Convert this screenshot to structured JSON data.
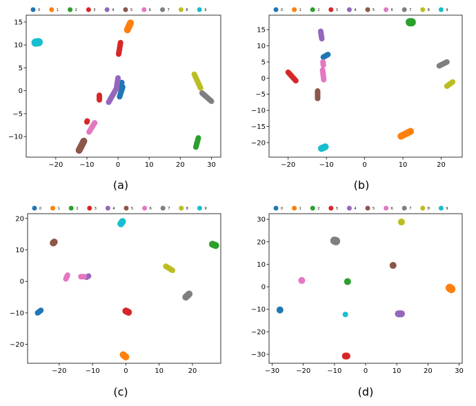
{
  "legend_labels": [
    "0",
    "1",
    "2",
    "3",
    "4",
    "5",
    "6",
    "7",
    "8",
    "9"
  ],
  "colors": [
    "#1f77b4",
    "#ff7f0e",
    "#2ca02c",
    "#d62728",
    "#9467bd",
    "#8c564b",
    "#e377c2",
    "#7f7f7f",
    "#bcbd22",
    "#17becf"
  ],
  "chart_data": [
    {
      "type": "scatter",
      "caption": "(a)",
      "xlim": [
        -29.5,
        33
      ],
      "ylim": [
        -14.5,
        16.5
      ],
      "xticks": [
        -20,
        -10,
        0,
        10,
        20,
        30
      ],
      "yticks": [
        -10,
        -5,
        0,
        5,
        10,
        15
      ],
      "grid": false,
      "legend": "top",
      "clusters": [
        {
          "label": "0",
          "segs": [
            [
              [
                0.5,
                -1.3
              ],
              [
                1.5,
                0.8
              ]
            ],
            [
              [
                0.8,
                0.4
              ],
              [
                1.2,
                1.8
              ]
            ]
          ],
          "r": 4
        },
        {
          "label": "1",
          "segs": [
            [
              [
                3,
                13.3
              ],
              [
                4,
                14.8
              ]
            ]
          ],
          "r": 5
        },
        {
          "label": "2",
          "segs": [
            [
              [
                25,
                -12.3
              ],
              [
                25.8,
                -10.3
              ]
            ]
          ],
          "r": 4
        },
        {
          "label": "3",
          "segs": [
            [
              [
                0.2,
                8
              ],
              [
                0.8,
                10.5
              ]
            ],
            [
              [
                -6,
                -2
              ],
              [
                -6,
                -1
              ]
            ],
            [
              [
                -10,
                -6.8
              ],
              [
                -9.9,
                -6.6
              ]
            ]
          ],
          "r": 4
        },
        {
          "label": "4",
          "segs": [
            [
              [
                -3,
                -2.5
              ],
              [
                -0.5,
                0.5
              ]
            ],
            [
              [
                -0.5,
                0.5
              ],
              [
                0,
                2.8
              ]
            ]
          ],
          "r": 4
        },
        {
          "label": "5",
          "segs": [
            [
              [
                -12.5,
                -13
              ],
              [
                -11,
                -11
              ]
            ]
          ],
          "r": 5
        },
        {
          "label": "6",
          "segs": [
            [
              [
                -9.3,
                -9
              ],
              [
                -7.5,
                -7
              ]
            ]
          ],
          "r": 4
        },
        {
          "label": "7",
          "segs": [
            [
              [
                27,
                -0.5
              ],
              [
                30,
                -2.3
              ]
            ]
          ],
          "r": 4
        },
        {
          "label": "8",
          "segs": [
            [
              [
                24.5,
                3.6
              ],
              [
                26.5,
                0.6
              ]
            ]
          ],
          "r": 4
        },
        {
          "label": "9",
          "segs": [
            [
              [
                -26.5,
                10.5
              ],
              [
                -25.5,
                10.6
              ]
            ]
          ],
          "r": 6
        }
      ]
    },
    {
      "type": "scatter",
      "caption": "(b)",
      "xlim": [
        -25,
        25.5
      ],
      "ylim": [
        -24.5,
        19.5
      ],
      "xticks": [
        -20,
        -10,
        0,
        10,
        20
      ],
      "yticks": [
        -20,
        -15,
        -10,
        -5,
        0,
        5,
        10,
        15
      ],
      "grid": false,
      "legend": "top",
      "clusters": [
        {
          "label": "0",
          "segs": [
            [
              [
                -10.8,
                6.5
              ],
              [
                -9.6,
                7.3
              ]
            ]
          ],
          "r": 4
        },
        {
          "label": "1",
          "segs": [
            [
              [
                9.5,
                -18
              ],
              [
                12,
                -16.5
              ]
            ]
          ],
          "r": 5
        },
        {
          "label": "2",
          "segs": [
            [
              [
                11.8,
                17.3
              ],
              [
                12.3,
                17.3
              ]
            ]
          ],
          "r": 6
        },
        {
          "label": "3",
          "segs": [
            [
              [
                -20,
                1.8
              ],
              [
                -18,
                -0.8
              ]
            ]
          ],
          "r": 4
        },
        {
          "label": "4",
          "segs": [
            [
              [
                -11.5,
                14.5
              ],
              [
                -11.2,
                12.2
              ]
            ]
          ],
          "r": 4
        },
        {
          "label": "5",
          "segs": [
            [
              [
                -12.3,
                -4
              ],
              [
                -12.3,
                -6.3
              ]
            ]
          ],
          "r": 4
        },
        {
          "label": "6",
          "segs": [
            [
              [
                -11,
                2.5
              ],
              [
                -10.7,
                -0.5
              ]
            ],
            [
              [
                -10.9,
                5
              ],
              [
                -10.8,
                4
              ]
            ]
          ],
          "r": 4
        },
        {
          "label": "7",
          "segs": [
            [
              [
                19.5,
                3.8
              ],
              [
                21.5,
                5
              ]
            ]
          ],
          "r": 4
        },
        {
          "label": "8",
          "segs": [
            [
              [
                21.5,
                -2.5
              ],
              [
                23,
                -1.2
              ]
            ]
          ],
          "r": 4
        },
        {
          "label": "9",
          "segs": [
            [
              [
                -11.3,
                -21.8
              ],
              [
                -10.3,
                -21.3
              ]
            ]
          ],
          "r": 5
        }
      ]
    },
    {
      "type": "scatter",
      "caption": "(c)",
      "xlim": [
        -29.5,
        28.5
      ],
      "ylim": [
        -26,
        21.5
      ],
      "xticks": [
        -20,
        -10,
        0,
        10,
        20
      ],
      "yticks": [
        -20,
        -10,
        0,
        10,
        20
      ],
      "grid": false,
      "legend": "top",
      "clusters": [
        {
          "label": "0",
          "segs": [
            [
              [
                -26.5,
                -10
              ],
              [
                -25.5,
                -9.2
              ]
            ]
          ],
          "r": 4
        },
        {
          "label": "1",
          "segs": [
            [
              [
                -0.8,
                -23.3
              ],
              [
                0,
                -24
              ]
            ]
          ],
          "r": 5
        },
        {
          "label": "2",
          "segs": [
            [
              [
                26,
                11.8
              ],
              [
                27,
                11.4
              ]
            ]
          ],
          "r": 5
        },
        {
          "label": "3",
          "segs": [
            [
              [
                0,
                -9.4
              ],
              [
                0.8,
                -9.8
              ]
            ]
          ],
          "r": 5
        },
        {
          "label": "4",
          "segs": [
            [
              [
                -11.8,
                1.3
              ],
              [
                -11.2,
                1.7
              ]
            ]
          ],
          "r": 4
        },
        {
          "label": "5",
          "segs": [
            [
              [
                -21.8,
                12.2
              ],
              [
                -21.5,
                12.5
              ]
            ]
          ],
          "r": 5
        },
        {
          "label": "6",
          "segs": [
            [
              [
                -18,
                0.8
              ],
              [
                -17.5,
                2
              ]
            ],
            [
              [
                -13.5,
                1.5
              ],
              [
                -12.5,
                1.5
              ]
            ]
          ],
          "r": 4
        },
        {
          "label": "7",
          "segs": [
            [
              [
                18,
                -5
              ],
              [
                19,
                -4
              ]
            ]
          ],
          "r": 5
        },
        {
          "label": "8",
          "segs": [
            [
              [
                12,
                4.8
              ],
              [
                14,
                3.5
              ]
            ]
          ],
          "r": 4
        },
        {
          "label": "9",
          "segs": [
            [
              [
                -1.5,
                18.3
              ],
              [
                -1,
                19
              ]
            ]
          ],
          "r": 5
        }
      ]
    },
    {
      "type": "scatter",
      "caption": "(d)",
      "xlim": [
        -31,
        31
      ],
      "ylim": [
        -34,
        32.5
      ],
      "xticks": [
        -30,
        -20,
        -10,
        0,
        10,
        20,
        30
      ],
      "yticks": [
        -30,
        -20,
        -10,
        0,
        10,
        20,
        30
      ],
      "grid": false,
      "legend": "top",
      "clusters": [
        {
          "label": "0",
          "segs": [
            [
              [
                -27.5,
                -10.3
              ],
              [
                -27.5,
                -10.3
              ]
            ]
          ],
          "r": 5
        },
        {
          "label": "1",
          "segs": [
            [
              [
                27,
                -0.5
              ],
              [
                27.5,
                -1
              ]
            ]
          ],
          "r": 6
        },
        {
          "label": "2",
          "segs": [
            [
              [
                -5.8,
                2.3
              ],
              [
                -5.8,
                2.3
              ]
            ]
          ],
          "r": 5
        },
        {
          "label": "3",
          "segs": [
            [
              [
                -6.5,
                -30.8
              ],
              [
                -6,
                -30.8
              ]
            ]
          ],
          "r": 5
        },
        {
          "label": "4",
          "segs": [
            [
              [
                10.5,
                -12
              ],
              [
                11.5,
                -12
              ]
            ]
          ],
          "r": 5
        },
        {
          "label": "5",
          "segs": [
            [
              [
                8.8,
                9.5
              ],
              [
                8.8,
                9.5
              ]
            ]
          ],
          "r": 5
        },
        {
          "label": "6",
          "segs": [
            [
              [
                -20.5,
                2.8
              ],
              [
                -20.5,
                2.8
              ]
            ]
          ],
          "r": 5
        },
        {
          "label": "7",
          "segs": [
            [
              [
                -10,
                20.5
              ],
              [
                -9.5,
                20.3
              ]
            ]
          ],
          "r": 6
        },
        {
          "label": "8",
          "segs": [
            [
              [
                11.5,
                28.8
              ],
              [
                11.5,
                28.8
              ]
            ]
          ],
          "r": 5
        },
        {
          "label": "9",
          "segs": [
            [
              [
                -6.5,
                -12.3
              ],
              [
                -6.5,
                -12.3
              ]
            ]
          ],
          "r": 4
        }
      ]
    }
  ]
}
